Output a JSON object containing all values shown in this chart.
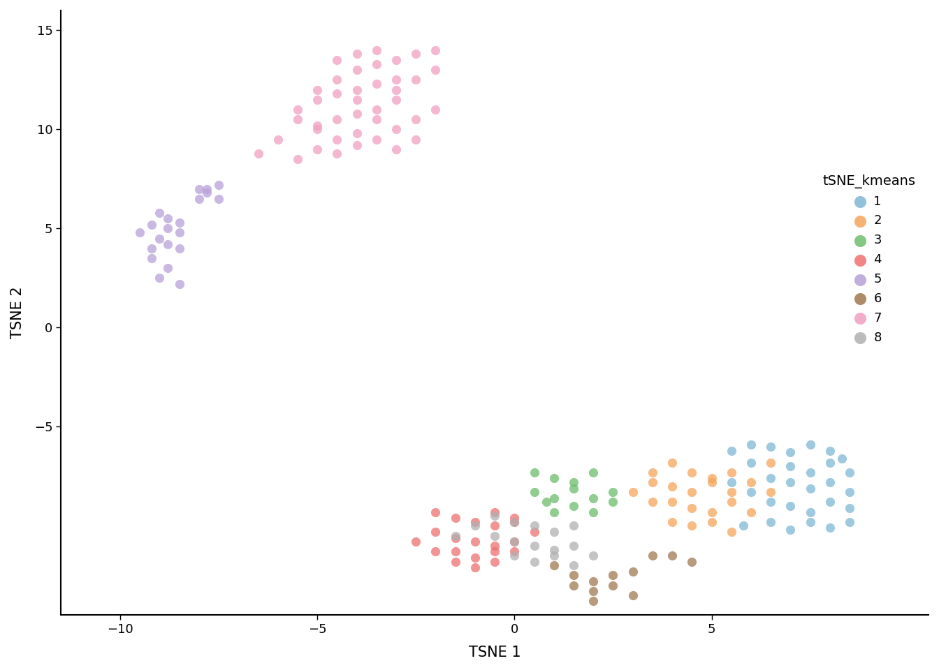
{
  "title": "",
  "xlabel": "TSNE 1",
  "ylabel": "TSNE 2",
  "legend_title": "tSNE_kmeans",
  "xlim": [
    -11.5,
    10.5
  ],
  "ylim": [
    -14.5,
    16
  ],
  "background_color": "#ffffff",
  "xticks": [
    -10,
    -5,
    0,
    5
  ],
  "yticks": [
    -5,
    0,
    5,
    10,
    15
  ],
  "clusters": {
    "1": {
      "color": "#7eb8d4",
      "points": [
        [
          5.5,
          -6.2
        ],
        [
          6.0,
          -5.9
        ],
        [
          6.5,
          -6.0
        ],
        [
          7.0,
          -6.3
        ],
        [
          7.5,
          -5.9
        ],
        [
          8.0,
          -6.2
        ],
        [
          8.3,
          -6.6
        ],
        [
          7.0,
          -7.0
        ],
        [
          7.5,
          -7.3
        ],
        [
          8.0,
          -6.8
        ],
        [
          8.5,
          -7.3
        ],
        [
          6.5,
          -7.6
        ],
        [
          7.0,
          -7.8
        ],
        [
          7.5,
          -8.1
        ],
        [
          8.0,
          -7.8
        ],
        [
          8.5,
          -8.3
        ],
        [
          6.0,
          -8.3
        ],
        [
          6.5,
          -8.8
        ],
        [
          7.0,
          -9.0
        ],
        [
          7.5,
          -9.3
        ],
        [
          8.0,
          -8.8
        ],
        [
          8.5,
          -9.1
        ],
        [
          5.8,
          -10.0
        ],
        [
          6.5,
          -9.8
        ],
        [
          7.0,
          -10.2
        ],
        [
          7.5,
          -9.8
        ],
        [
          8.0,
          -10.1
        ],
        [
          8.5,
          -9.8
        ],
        [
          6.0,
          -6.8
        ],
        [
          5.5,
          -7.8
        ]
      ]
    },
    "2": {
      "color": "#f5a55a",
      "points": [
        [
          3.5,
          -7.3
        ],
        [
          4.0,
          -6.8
        ],
        [
          4.5,
          -7.3
        ],
        [
          5.0,
          -7.6
        ],
        [
          5.5,
          -7.3
        ],
        [
          4.0,
          -8.0
        ],
        [
          4.5,
          -8.3
        ],
        [
          5.0,
          -7.8
        ],
        [
          5.5,
          -8.3
        ],
        [
          6.0,
          -7.8
        ],
        [
          3.5,
          -8.8
        ],
        [
          4.0,
          -8.8
        ],
        [
          4.5,
          -9.1
        ],
        [
          5.0,
          -9.3
        ],
        [
          5.5,
          -8.8
        ],
        [
          6.0,
          -9.3
        ],
        [
          4.0,
          -9.8
        ],
        [
          4.5,
          -10.0
        ],
        [
          5.0,
          -9.8
        ],
        [
          5.5,
          -10.3
        ],
        [
          3.0,
          -8.3
        ],
        [
          3.5,
          -7.8
        ],
        [
          6.5,
          -6.8
        ],
        [
          6.5,
          -8.3
        ]
      ]
    },
    "3": {
      "color": "#6cbd6c",
      "points": [
        [
          0.5,
          -7.3
        ],
        [
          1.0,
          -7.6
        ],
        [
          1.5,
          -7.8
        ],
        [
          0.5,
          -8.3
        ],
        [
          1.0,
          -8.6
        ],
        [
          1.5,
          -8.1
        ],
        [
          0.8,
          -8.8
        ],
        [
          1.5,
          -9.0
        ],
        [
          2.0,
          -8.6
        ],
        [
          2.5,
          -8.3
        ],
        [
          2.0,
          -9.3
        ],
        [
          2.5,
          -8.8
        ],
        [
          1.0,
          -9.3
        ],
        [
          2.0,
          -7.3
        ]
      ]
    },
    "4": {
      "color": "#f07070",
      "points": [
        [
          -2.0,
          -9.3
        ],
        [
          -1.5,
          -9.6
        ],
        [
          -1.0,
          -9.8
        ],
        [
          -0.5,
          -10.0
        ],
        [
          0.0,
          -9.8
        ],
        [
          -2.0,
          -10.3
        ],
        [
          -1.5,
          -10.6
        ],
        [
          -1.0,
          -10.8
        ],
        [
          -0.5,
          -11.0
        ],
        [
          0.0,
          -10.8
        ],
        [
          -2.5,
          -10.8
        ],
        [
          -2.0,
          -11.3
        ],
        [
          -1.5,
          -11.3
        ],
        [
          -1.0,
          -11.6
        ],
        [
          -0.5,
          -11.3
        ],
        [
          0.0,
          -11.3
        ],
        [
          -1.5,
          -11.8
        ],
        [
          -1.0,
          -12.1
        ],
        [
          -0.5,
          -11.8
        ],
        [
          0.5,
          -10.3
        ],
        [
          -0.5,
          -9.3
        ],
        [
          0.0,
          -9.6
        ]
      ]
    },
    "5": {
      "color": "#b8a0d8",
      "points": [
        [
          -9.0,
          4.5
        ],
        [
          -8.8,
          5.0
        ],
        [
          -8.5,
          4.8
        ],
        [
          -9.2,
          5.2
        ],
        [
          -8.8,
          5.5
        ],
        [
          -9.0,
          5.8
        ],
        [
          -8.5,
          5.3
        ],
        [
          -9.2,
          4.0
        ],
        [
          -8.8,
          4.2
        ],
        [
          -9.5,
          4.8
        ],
        [
          -8.5,
          4.0
        ],
        [
          -9.2,
          3.5
        ],
        [
          -8.8,
          3.0
        ],
        [
          -9.0,
          2.5
        ],
        [
          -8.5,
          2.2
        ],
        [
          -8.0,
          6.5
        ],
        [
          -7.8,
          6.8
        ],
        [
          -7.5,
          6.5
        ],
        [
          -7.8,
          7.0
        ],
        [
          -7.5,
          7.2
        ],
        [
          -8.0,
          7.0
        ]
      ]
    },
    "6": {
      "color": "#a07850",
      "points": [
        [
          1.0,
          -12.0
        ],
        [
          1.5,
          -12.5
        ],
        [
          2.0,
          -12.8
        ],
        [
          2.5,
          -12.5
        ],
        [
          3.0,
          -12.3
        ],
        [
          1.5,
          -13.0
        ],
        [
          2.0,
          -13.3
        ],
        [
          2.5,
          -13.0
        ],
        [
          3.0,
          -13.5
        ],
        [
          2.0,
          -13.8
        ],
        [
          4.0,
          -11.5
        ],
        [
          4.5,
          -11.8
        ],
        [
          3.5,
          -11.5
        ]
      ]
    },
    "7": {
      "color": "#f0a0c0",
      "points": [
        [
          -5.5,
          8.5
        ],
        [
          -5.0,
          9.0
        ],
        [
          -4.5,
          9.5
        ],
        [
          -4.0,
          9.8
        ],
        [
          -5.0,
          10.0
        ],
        [
          -4.5,
          10.5
        ],
        [
          -4.0,
          10.8
        ],
        [
          -3.5,
          11.0
        ],
        [
          -5.5,
          11.0
        ],
        [
          -5.0,
          11.5
        ],
        [
          -4.5,
          11.8
        ],
        [
          -4.0,
          12.0
        ],
        [
          -3.5,
          12.3
        ],
        [
          -3.0,
          12.5
        ],
        [
          -5.0,
          12.0
        ],
        [
          -4.5,
          12.5
        ],
        [
          -4.0,
          13.0
        ],
        [
          -3.5,
          13.3
        ],
        [
          -3.0,
          13.5
        ],
        [
          -2.5,
          13.8
        ],
        [
          -2.0,
          14.0
        ],
        [
          -4.0,
          13.8
        ],
        [
          -3.5,
          14.0
        ],
        [
          -5.5,
          10.5
        ],
        [
          -5.0,
          10.2
        ],
        [
          -4.0,
          11.5
        ],
        [
          -3.0,
          11.5
        ],
        [
          -2.5,
          12.5
        ],
        [
          -2.0,
          13.0
        ],
        [
          -6.0,
          9.5
        ],
        [
          -6.5,
          8.8
        ],
        [
          -4.5,
          8.8
        ],
        [
          -3.5,
          9.5
        ],
        [
          -3.0,
          10.0
        ],
        [
          -2.5,
          10.5
        ],
        [
          -2.0,
          11.0
        ],
        [
          -3.0,
          9.0
        ],
        [
          -2.5,
          9.5
        ],
        [
          -4.5,
          13.5
        ],
        [
          -4.0,
          9.2
        ],
        [
          -3.5,
          10.5
        ],
        [
          -3.0,
          12.0
        ]
      ]
    },
    "8": {
      "color": "#b0b0b0",
      "points": [
        [
          -0.5,
          -9.5
        ],
        [
          0.0,
          -9.8
        ],
        [
          0.5,
          -10.0
        ],
        [
          1.0,
          -10.3
        ],
        [
          1.5,
          -10.0
        ],
        [
          -0.5,
          -10.5
        ],
        [
          0.0,
          -10.8
        ],
        [
          0.5,
          -11.0
        ],
        [
          1.0,
          -11.2
        ],
        [
          1.5,
          -11.0
        ],
        [
          0.0,
          -11.5
        ],
        [
          0.5,
          -11.8
        ],
        [
          1.0,
          -11.5
        ],
        [
          1.5,
          -12.0
        ],
        [
          2.0,
          -11.5
        ],
        [
          -1.0,
          -10.0
        ],
        [
          -1.5,
          -10.5
        ]
      ]
    }
  }
}
